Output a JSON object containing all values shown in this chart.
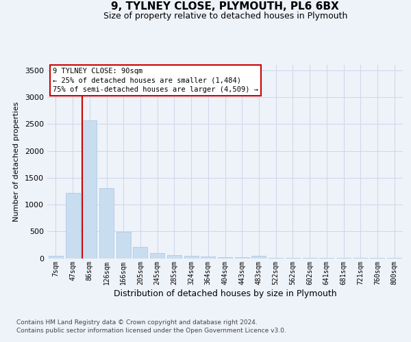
{
  "title_line1": "9, TYLNEY CLOSE, PLYMOUTH, PL6 6BX",
  "title_line2": "Size of property relative to detached houses in Plymouth",
  "xlabel": "Distribution of detached houses by size in Plymouth",
  "ylabel": "Number of detached properties",
  "categories": [
    "7sqm",
    "47sqm",
    "86sqm",
    "126sqm",
    "166sqm",
    "205sqm",
    "245sqm",
    "285sqm",
    "324sqm",
    "364sqm",
    "404sqm",
    "443sqm",
    "483sqm",
    "522sqm",
    "562sqm",
    "602sqm",
    "641sqm",
    "681sqm",
    "721sqm",
    "760sqm",
    "800sqm"
  ],
  "values": [
    50,
    1220,
    2570,
    1310,
    490,
    210,
    100,
    55,
    40,
    30,
    20,
    15,
    45,
    5,
    5,
    3,
    3,
    2,
    2,
    2,
    2
  ],
  "bar_color": "#c8ddf0",
  "bar_edge_color": "#a8c4e0",
  "vline_index": 2,
  "vline_color": "#cc0000",
  "annotation_line1": "9 TYLNEY CLOSE: 90sqm",
  "annotation_line2": "← 25% of detached houses are smaller (1,484)",
  "annotation_line3": "75% of semi-detached houses are larger (4,509) →",
  "annotation_box_facecolor": "#ffffff",
  "annotation_box_edgecolor": "#cc0000",
  "ylim": [
    0,
    3600
  ],
  "yticks": [
    0,
    500,
    1000,
    1500,
    2000,
    2500,
    3000,
    3500
  ],
  "grid_color": "#ccd6e8",
  "footer_line1": "Contains HM Land Registry data © Crown copyright and database right 2024.",
  "footer_line2": "Contains public sector information licensed under the Open Government Licence v3.0.",
  "bg_color": "#eef2f9"
}
